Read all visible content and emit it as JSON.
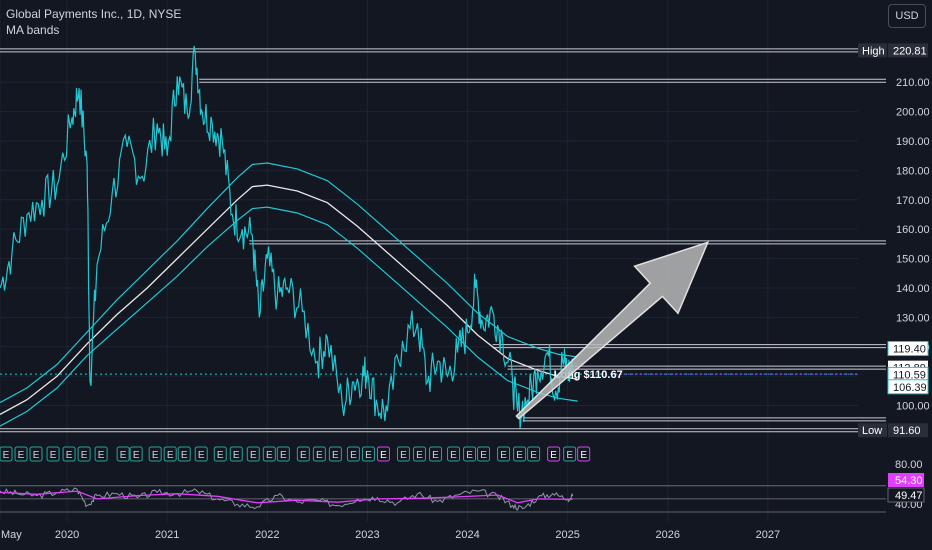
{
  "header": {
    "title": "Global Payments Inc., 1D, NYSE",
    "indicator": "MA bands",
    "currency": "USD"
  },
  "colors": {
    "background": "#131722",
    "price": "#1fc9d4",
    "ma_mid": "#e9e9e9",
    "ma_band": "#1fc9d4",
    "level": "#c9ccd4",
    "rsi": "#8f97ab",
    "rsi_ma": "#e040fb",
    "grid": "#1f2330",
    "arrow": "#b8b8b8",
    "label_cyan": "#ffffff",
    "label_magenta": "#e040fb",
    "earnings_green": "#26a69a",
    "earnings_red": "#ef5350"
  },
  "chart_data": {
    "type": "line",
    "x_axis": {
      "tick_labels": [
        "May",
        "2020",
        "2021",
        "2022",
        "2023",
        "2024",
        "2025",
        "2026",
        "2027"
      ],
      "tick_values": [
        2019.33,
        2020.0,
        2021.0,
        2022.0,
        2023.0,
        2024.0,
        2025.0,
        2026.0,
        2027.0
      ],
      "range": [
        2019.33,
        2027.9
      ]
    },
    "y_axis": {
      "ticks": [
        100,
        110,
        120,
        130,
        140,
        150,
        160,
        170,
        180,
        190,
        200,
        210
      ],
      "tick_labels": [
        "100.00",
        "110.00",
        "120.00",
        "130.00",
        "140.00",
        "150.00",
        "160.00",
        "170.00",
        "180.00",
        "190.00",
        "200.00",
        "210.00"
      ],
      "range": [
        91.0,
        223.0
      ]
    },
    "price_series": {
      "x": [
        2019.33,
        2019.45,
        2019.6,
        2019.75,
        2019.9,
        2020.05,
        2020.12,
        2020.2,
        2020.23,
        2020.3,
        2020.45,
        2020.6,
        2020.75,
        2020.9,
        2021.0,
        2021.1,
        2021.2,
        2021.28,
        2021.35,
        2021.45,
        2021.55,
        2021.65,
        2021.75,
        2021.85,
        2021.92,
        2022.0,
        2022.1,
        2022.2,
        2022.35,
        2022.5,
        2022.6,
        2022.75,
        2022.85,
        2022.95,
        2023.0,
        2023.1,
        2023.2,
        2023.35,
        2023.5,
        2023.6,
        2023.7,
        2023.8,
        2023.9,
        2024.0,
        2024.08,
        2024.15,
        2024.25,
        2024.35,
        2024.45,
        2024.5,
        2024.6,
        2024.7,
        2024.8,
        2024.88,
        2024.95,
        2025.0,
        2025.05
      ],
      "y": [
        140,
        152,
        165,
        170,
        175,
        198,
        208,
        182,
        108,
        148,
        172,
        188,
        178,
        196,
        185,
        212,
        200,
        220,
        200,
        196,
        190,
        165,
        160,
        158,
        130,
        150,
        137,
        140,
        132,
        115,
        123,
        100,
        108,
        110,
        112,
        100,
        98,
        122,
        128,
        108,
        115,
        110,
        118,
        125,
        140,
        128,
        132,
        123,
        108,
        98,
        102,
        112,
        118,
        105,
        115,
        112,
        110.67
      ]
    },
    "ma_mid": {
      "x": [
        2019.33,
        2019.6,
        2019.9,
        2020.2,
        2020.5,
        2020.8,
        2021.1,
        2021.4,
        2021.7,
        2021.85,
        2022.0,
        2022.3,
        2022.6,
        2022.9,
        2023.2,
        2023.5,
        2023.8,
        2024.1,
        2024.4,
        2024.7,
        2024.9,
        2025.1
      ],
      "y": [
        97,
        102,
        110,
        121,
        131,
        140,
        150,
        160,
        170,
        174.5,
        175,
        173,
        169,
        161,
        152,
        143,
        134,
        124,
        116,
        112,
        110,
        109
      ]
    },
    "ma_upper": {
      "x": [
        2019.33,
        2019.6,
        2019.9,
        2020.2,
        2020.5,
        2020.8,
        2021.1,
        2021.4,
        2021.7,
        2021.85,
        2022.0,
        2022.3,
        2022.6,
        2022.9,
        2023.2,
        2023.5,
        2023.8,
        2024.1,
        2024.4,
        2024.7,
        2024.9,
        2025.1
      ],
      "y": [
        101,
        106,
        114,
        125,
        136,
        146,
        156,
        167,
        177.5,
        182,
        182.5,
        180.5,
        176.5,
        168.5,
        159.5,
        150.5,
        141.5,
        131.5,
        123.5,
        119.5,
        117.5,
        116.5
      ]
    },
    "ma_lower": {
      "x": [
        2019.33,
        2019.6,
        2019.9,
        2020.2,
        2020.5,
        2020.8,
        2021.1,
        2021.4,
        2021.7,
        2021.85,
        2022.0,
        2022.3,
        2022.6,
        2022.9,
        2023.2,
        2023.5,
        2023.8,
        2024.1,
        2024.4,
        2024.7,
        2024.9,
        2025.1
      ],
      "y": [
        93,
        98,
        106,
        117,
        126,
        135,
        144,
        154,
        163,
        167,
        167.5,
        165.5,
        161.5,
        153.5,
        144.5,
        135.5,
        126.5,
        116.5,
        108.5,
        104.5,
        102.5,
        101.5
      ]
    },
    "levels": [
      {
        "value": 220.81,
        "x_start": 2019.33
      },
      {
        "value": 210.5,
        "x_start": 2021.32
      },
      {
        "value": 155.5,
        "x_start": 2021.82
      },
      {
        "value": 120.2,
        "x_start": 2024.25
      },
      {
        "value": 112.89,
        "x_start": 2024.4
      },
      {
        "value": 95.3,
        "x_start": 2024.55
      },
      {
        "value": 91.6,
        "x_start": 2019.33
      }
    ],
    "price_labels": [
      {
        "value": 220.81,
        "text": "220.81",
        "tag": "High",
        "style": "dark"
      },
      {
        "value": 119.4,
        "text": "119.40",
        "tag": "",
        "style": "cyan"
      },
      {
        "value": 112.89,
        "text": "112.89",
        "tag": "",
        "style": "white"
      },
      {
        "value": 110.67,
        "text": "110.67",
        "tag": "",
        "style": "magenta"
      },
      {
        "value": 110.59,
        "text": "110.59",
        "tag": "",
        "style": "cyan"
      },
      {
        "value": 106.39,
        "text": "106.39",
        "tag": "",
        "style": "cyan"
      },
      {
        "value": 91.6,
        "text": "91.60",
        "tag": "Low",
        "style": "dark"
      }
    ],
    "position": {
      "text": "Long $110.67",
      "value": 110.67,
      "x_start": 2024.78
    },
    "arrow": {
      "x1": 2024.5,
      "y1": 96,
      "x2": 2026.4,
      "y2": 155.5
    },
    "earnings_markers": {
      "letter": "E",
      "x": [
        2019.33,
        2019.48,
        2019.63,
        2019.8,
        2019.96,
        2020.11,
        2020.28,
        2020.5,
        2020.63,
        2020.82,
        2020.97,
        2021.11,
        2021.28,
        2021.47,
        2021.63,
        2021.8,
        2021.96,
        2022.1,
        2022.3,
        2022.46,
        2022.62,
        2022.8,
        2022.95,
        2023.1,
        2023.3,
        2023.46,
        2023.62,
        2023.8,
        2023.96,
        2024.1,
        2024.3,
        2024.46,
        2024.6,
        2024.8,
        2024.96,
        2025.1
      ],
      "red_indices": [
        23,
        33,
        35
      ]
    },
    "rsi": {
      "upper_label": "54.30",
      "lower_label": "49.47",
      "axis_top_label": "80.00",
      "axis_bottom_label": "40.00",
      "range": [
        30,
        85
      ],
      "bands": [
        70,
        50,
        30
      ],
      "series_x": [
        2019.33,
        2019.5,
        2019.7,
        2019.9,
        2020.1,
        2020.2,
        2020.3,
        2020.5,
        2020.7,
        2020.9,
        2021.1,
        2021.3,
        2021.5,
        2021.7,
        2021.9,
        2022.1,
        2022.3,
        2022.5,
        2022.7,
        2022.9,
        2023.1,
        2023.3,
        2023.5,
        2023.7,
        2023.9,
        2024.1,
        2024.3,
        2024.45,
        2024.55,
        2024.7,
        2024.85,
        2025.0,
        2025.05
      ],
      "series_y": [
        62,
        58,
        55,
        60,
        65,
        40,
        55,
        58,
        52,
        60,
        58,
        62,
        50,
        42,
        38,
        55,
        45,
        48,
        40,
        50,
        52,
        44,
        58,
        46,
        56,
        62,
        54,
        40,
        35,
        52,
        58,
        50,
        54.3
      ],
      "ma_x": [
        2019.33,
        2019.7,
        2020.1,
        2020.3,
        2020.7,
        2021.1,
        2021.5,
        2021.9,
        2022.3,
        2022.7,
        2023.1,
        2023.5,
        2023.9,
        2024.3,
        2024.5,
        2024.7,
        2025.05
      ],
      "ma_y": [
        60,
        57,
        62,
        50,
        55,
        58,
        54,
        44,
        48,
        45,
        50,
        51,
        53,
        56,
        44,
        50,
        49.47
      ]
    }
  }
}
